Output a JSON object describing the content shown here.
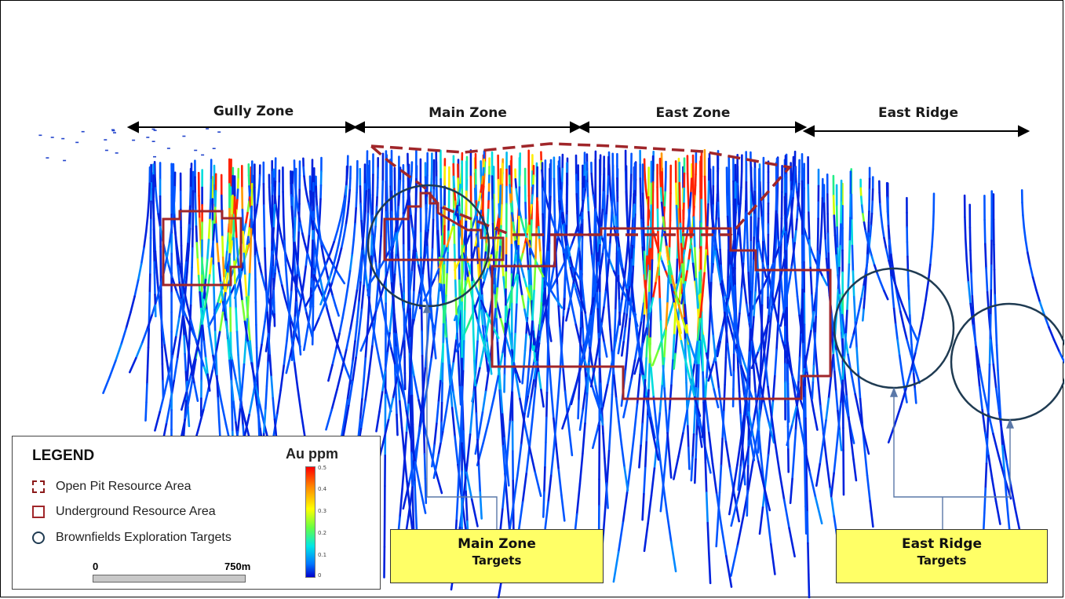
{
  "zones": [
    {
      "label": "Gully Zone"
    },
    {
      "label": "Main Zone"
    },
    {
      "label": "East Zone"
    },
    {
      "label": "East Ridge"
    }
  ],
  "callouts": {
    "main": {
      "line1": "Main Zone",
      "line2": "Targets"
    },
    "east": {
      "line1": "East Ridge",
      "line2": "Targets"
    }
  },
  "legend": {
    "title": "LEGEND",
    "items": [
      {
        "label": "Open Pit Resource Area"
      },
      {
        "label": "Underground Resource Area"
      },
      {
        "label": "Brownfields Exploration Targets"
      }
    ],
    "colorbar": {
      "title": "Au ppm",
      "ticks": [
        "0.5",
        "0.4",
        "0.3",
        "0.2",
        "0.1",
        "0"
      ]
    },
    "scale": {
      "start": "0",
      "end": "750m"
    }
  },
  "colors": {
    "resource_outline": "#a0262a",
    "target_circle": "#1f3b52",
    "callout_fill": "#ffff66"
  }
}
